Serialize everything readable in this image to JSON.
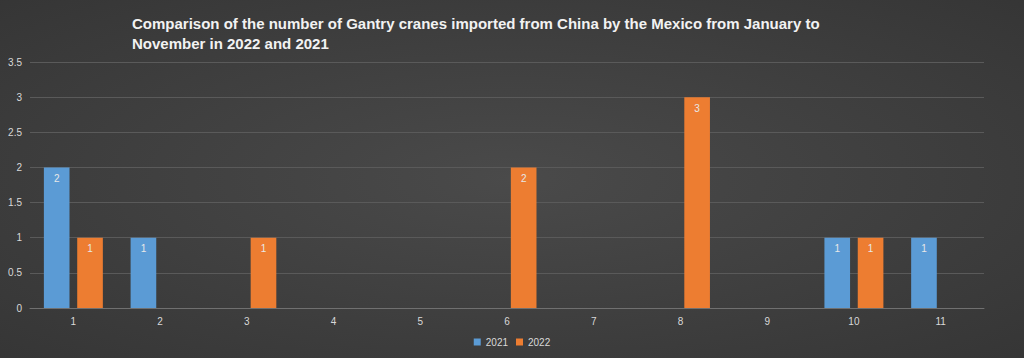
{
  "chart_data": {
    "type": "bar",
    "title": "Comparison of the number of Gantry cranes imported from China by the Mexico from January to November in 2022 and 2021",
    "categories": [
      "1",
      "2",
      "3",
      "4",
      "5",
      "6",
      "7",
      "8",
      "9",
      "10",
      "11"
    ],
    "series": [
      {
        "name": "2021",
        "color": "#5b9bd5",
        "values": [
          2,
          1,
          null,
          null,
          null,
          null,
          null,
          null,
          null,
          1,
          1
        ]
      },
      {
        "name": "2022",
        "color": "#ed7d31",
        "values": [
          1,
          null,
          1,
          null,
          null,
          2,
          null,
          3,
          null,
          1,
          null
        ]
      }
    ],
    "ylim": [
      0,
      3.5
    ],
    "yticks": [
      0,
      0.5,
      1,
      1.5,
      2,
      2.5,
      3,
      3.5
    ],
    "grid": true,
    "legend": "bottom",
    "data_labels": true
  }
}
